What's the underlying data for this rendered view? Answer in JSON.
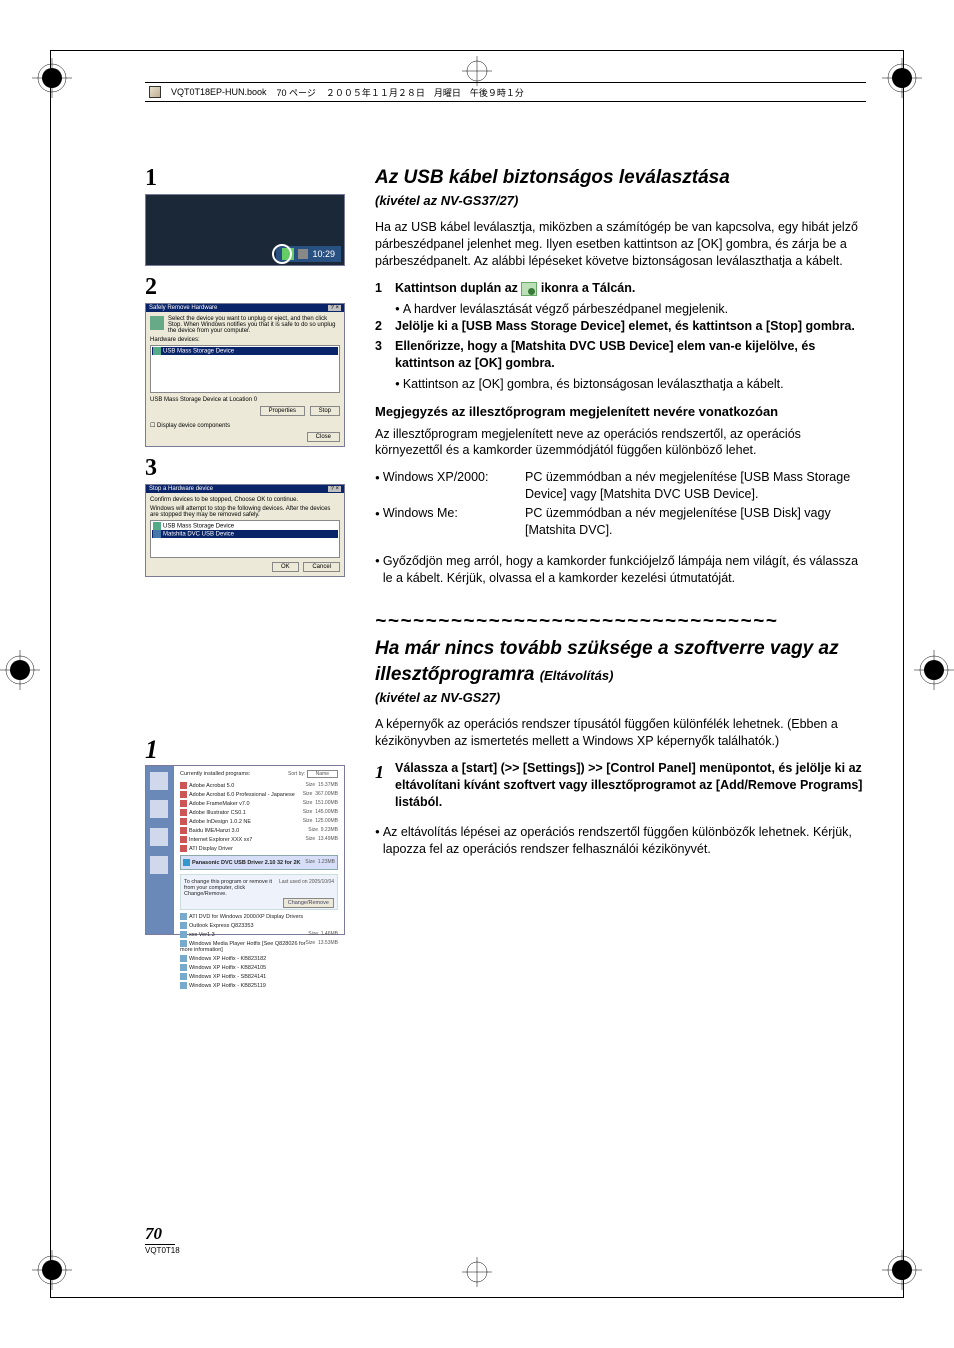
{
  "header": {
    "book": "VQT0T18EP-HUN.book",
    "page": "70 ページ",
    "date": "２００５年１１月２８日　月曜日　午後９時１分"
  },
  "section1": {
    "title": "Az USB kábel biztonságos leválasztása",
    "subtitle": "(kivétel az NV-GS37/27)",
    "intro": "Ha az USB kábel leválasztja, miközben a számítógép be van kapcsolva, egy hibát jelző párbeszédpanel jelenhet meg. Ilyen esetben kattintson az [OK] gombra, és zárja be a párbeszédpanelt. Az alábbi lépéseket követve biztonságosan leválaszthatja a kábelt.",
    "step1_a": "Kattintson duplán az ",
    "step1_b": " ikonra a Tálcán.",
    "step1_sub": "A hardver leválasztását végző párbeszédpanel megjelenik.",
    "step2": "Jelölje ki a [USB Mass Storage Device] elemet, és kattintson a [Stop] gombra.",
    "step3": "Ellenőrizze, hogy a [Matshita DVC USB Device] elem van-e kijelölve, és kattintson az [OK] gombra.",
    "step3_sub": "Kattintson az [OK] gombra, és biztonságosan leválaszthatja a kábelt.",
    "note_h": "Megjegyzés az illesztőprogram megjelenített nevére vonatkozóan",
    "note_p": "Az illesztőprogram megjelenített neve az operációs rendszertől, az operációs környezettől és a kamkorder üzemmódjától függően különböző lehet.",
    "os1_l": "Windows XP/2000:",
    "os1_r": "PC üzemmódban a név megjelenítése [USB Mass Storage Device] vagy [Matshita DVC USB Device].",
    "os2_l": "Windows Me:",
    "os2_r": "PC üzemmódban a név megjelenítése [USB Disk] vagy [Matshita DVC].",
    "final_bullet": "Győződjön meg arról, hogy a kamkorder funkciójelző lámpája nem világít, és válassza le a kábelt. Kérjük, olvassa el a kamkorder kezelési útmutatóját."
  },
  "section2": {
    "waves": "~~~~~~~~~~~~~~~~~~~~~~~~~~~~~~~~",
    "title": "Ha már nincs tovább szüksége a szoftverre vagy az illesztőprogramra",
    "sub1": "(Eltávolítás)",
    "sub2": "(kivétel az NV-GS27)",
    "intro": "A képernyők az operációs rendszer típusától függően különfélék lehetnek. (Ebben a kézikönyvben az ismertetés mellett a Windows XP képernyők találhatók.)",
    "step1": "Válassza a [start] (>> [Settings]) >> [Control Panel] menüpontot, és jelölje ki az eltávolítani kívánt szoftvert vagy illesztőprogramot az [Add/Remove Programs] listából.",
    "final_bullet": "Az eltávolítás lépései az operációs rendszertől függően különbözők lehetnek. Kérjük, lapozza fel az operációs rendszer felhasználói kézikönyvét."
  },
  "screenshots": {
    "ss1": {
      "clock": "10:29"
    },
    "ss2": {
      "title": "Safely Remove Hardware",
      "instr": "Select the device you want to unplug or eject, and then click Stop. When Windows notifies you that it is safe to do so unplug the device from your computer.",
      "label": "Hardware devices:",
      "item": "USB Mass Storage Device",
      "status": "USB Mass Storage Device at Location 0",
      "btn_prop": "Properties",
      "btn_stop": "Stop",
      "check": "Display device components",
      "btn_close": "Close"
    },
    "ss3": {
      "title": "Stop a Hardware device",
      "instr1": "Confirm devices to be stopped, Choose OK to continue.",
      "instr2": "Windows will attempt to stop the following devices. After the devices are stopped they may be removed safely.",
      "item1": "USB Mass Storage Device",
      "item2": "Matshita DVC USB Device",
      "btn_ok": "OK",
      "btn_cancel": "Cancel"
    },
    "ss4": {
      "header": "Currently installed programs:",
      "sortby": "Sort by:",
      "sortval": "Name",
      "rows": [
        {
          "n": "Adobe Acrobat 5.0",
          "s": "Size",
          "v": "15.37MB"
        },
        {
          "n": "Adobe Acrobat 6.0 Professional - Japanese",
          "s": "Size",
          "v": "367.00MB"
        },
        {
          "n": "Adobe FrameMaker v7.0",
          "s": "Size",
          "v": "151.00MB"
        },
        {
          "n": "Adobe Illustrator CS0.1",
          "s": "Size",
          "v": "145.00MB"
        },
        {
          "n": "Adobe InDesign 1.0.2 NE",
          "s": "Size",
          "v": "125.00MB"
        },
        {
          "n": "Baidu IME/Hanzi 3.0",
          "s": "Size",
          "v": "9.23MB"
        },
        {
          "n": "Internet Explorer XXX xx7",
          "s": "Size",
          "v": "13.49MB"
        },
        {
          "n": "ATI Display Driver",
          "s": "",
          "v": ""
        }
      ],
      "sel": "Panasonic DVC USB Driver 2.10 32 for 2K",
      "sel_info": "To change this program or remove it from your computer, click Change/Remove.",
      "sel_btn": "Change/Remove",
      "rows2": [
        {
          "n": "ATI DVD for Windows 2000/XP Display Drivers",
          "s": "",
          "v": ""
        },
        {
          "n": "Outlook Express Q823353",
          "s": "",
          "v": ""
        },
        {
          "n": "xxx Ver1.3",
          "s": "Size",
          "v": "1.46MB"
        },
        {
          "n": "Windows Media Player Hotfix [See Q828026 for more information]",
          "s": "Size",
          "v": "13.53MB"
        },
        {
          "n": "Windows XP Hotfix - KB823182",
          "s": "",
          "v": ""
        },
        {
          "n": "Windows XP Hotfix - KB824105",
          "s": "",
          "v": ""
        },
        {
          "n": "Windows XP Hotfix - SB824141",
          "s": "",
          "v": ""
        },
        {
          "n": "Windows XP Hotfix - KB825119",
          "s": "",
          "v": ""
        }
      ]
    }
  },
  "footer": {
    "page": "70",
    "code": "VQT0T18"
  },
  "colors": {
    "text": "#000000",
    "bg": "#ffffff",
    "win_titlebar": "#0a246a",
    "win_bg": "#ece9d8",
    "taskbar": "#1a2838",
    "sidebar": "#6b89b8"
  }
}
